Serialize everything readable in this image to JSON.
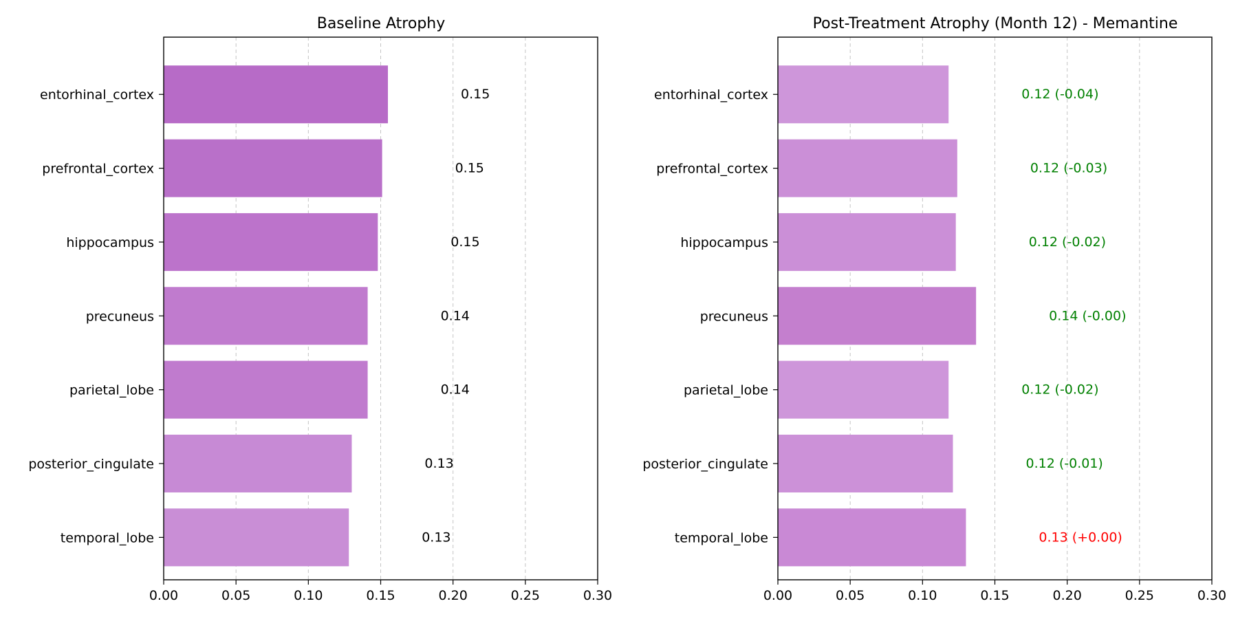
{
  "chart_data": [
    {
      "type": "bar",
      "orientation": "horizontal",
      "title": "Baseline Atrophy",
      "xlabel": "",
      "ylabel": "",
      "xlim": [
        0,
        0.3
      ],
      "xticks": [
        "0.00",
        "0.05",
        "0.10",
        "0.15",
        "0.20",
        "0.25",
        "0.30"
      ],
      "grid": "x-dashed",
      "categories": [
        "entorhinal_cortex",
        "prefrontal_cortex",
        "hippocampus",
        "precuneus",
        "parietal_lobe",
        "posterior_cingulate",
        "temporal_lobe"
      ],
      "values": [
        0.155,
        0.151,
        0.148,
        0.141,
        0.141,
        0.13,
        0.128
      ],
      "value_labels": [
        "0.15",
        "0.15",
        "0.15",
        "0.14",
        "0.14",
        "0.13",
        "0.13"
      ],
      "label_color": "#000000",
      "bar_colors": [
        "#b76bc7",
        "#b970c9",
        "#bc73cb",
        "#c07bce",
        "#c07bce",
        "#c78ad5",
        "#c98ed6"
      ]
    },
    {
      "type": "bar",
      "orientation": "horizontal",
      "title": "Post-Treatment Atrophy (Month 12) - Memantine",
      "xlabel": "",
      "ylabel": "",
      "xlim": [
        0,
        0.3
      ],
      "xticks": [
        "0.00",
        "0.05",
        "0.10",
        "0.15",
        "0.20",
        "0.25",
        "0.30"
      ],
      "grid": "x-dashed",
      "categories": [
        "entorhinal_cortex",
        "prefrontal_cortex",
        "hippocampus",
        "precuneus",
        "parietal_lobe",
        "posterior_cingulate",
        "temporal_lobe"
      ],
      "values": [
        0.118,
        0.124,
        0.123,
        0.137,
        0.118,
        0.121,
        0.13
      ],
      "value_labels": [
        "0.12 (-0.04)",
        "0.12 (-0.03)",
        "0.12 (-0.02)",
        "0.14 (-0.00)",
        "0.12 (-0.02)",
        "0.12 (-0.01)",
        "0.13 (+0.00)"
      ],
      "label_colors": [
        "#008000",
        "#008000",
        "#008000",
        "#008000",
        "#008000",
        "#008000",
        "#ff0000"
      ],
      "bar_colors": [
        "#ce96da",
        "#cb8fd7",
        "#cb8fd7",
        "#c47fce",
        "#ce96da",
        "#cc91d8",
        "#c989d5"
      ]
    }
  ],
  "colors": {
    "grid": "#b0b0b0",
    "axis": "#000000",
    "improved": "#008000",
    "worsened": "#ff0000"
  }
}
